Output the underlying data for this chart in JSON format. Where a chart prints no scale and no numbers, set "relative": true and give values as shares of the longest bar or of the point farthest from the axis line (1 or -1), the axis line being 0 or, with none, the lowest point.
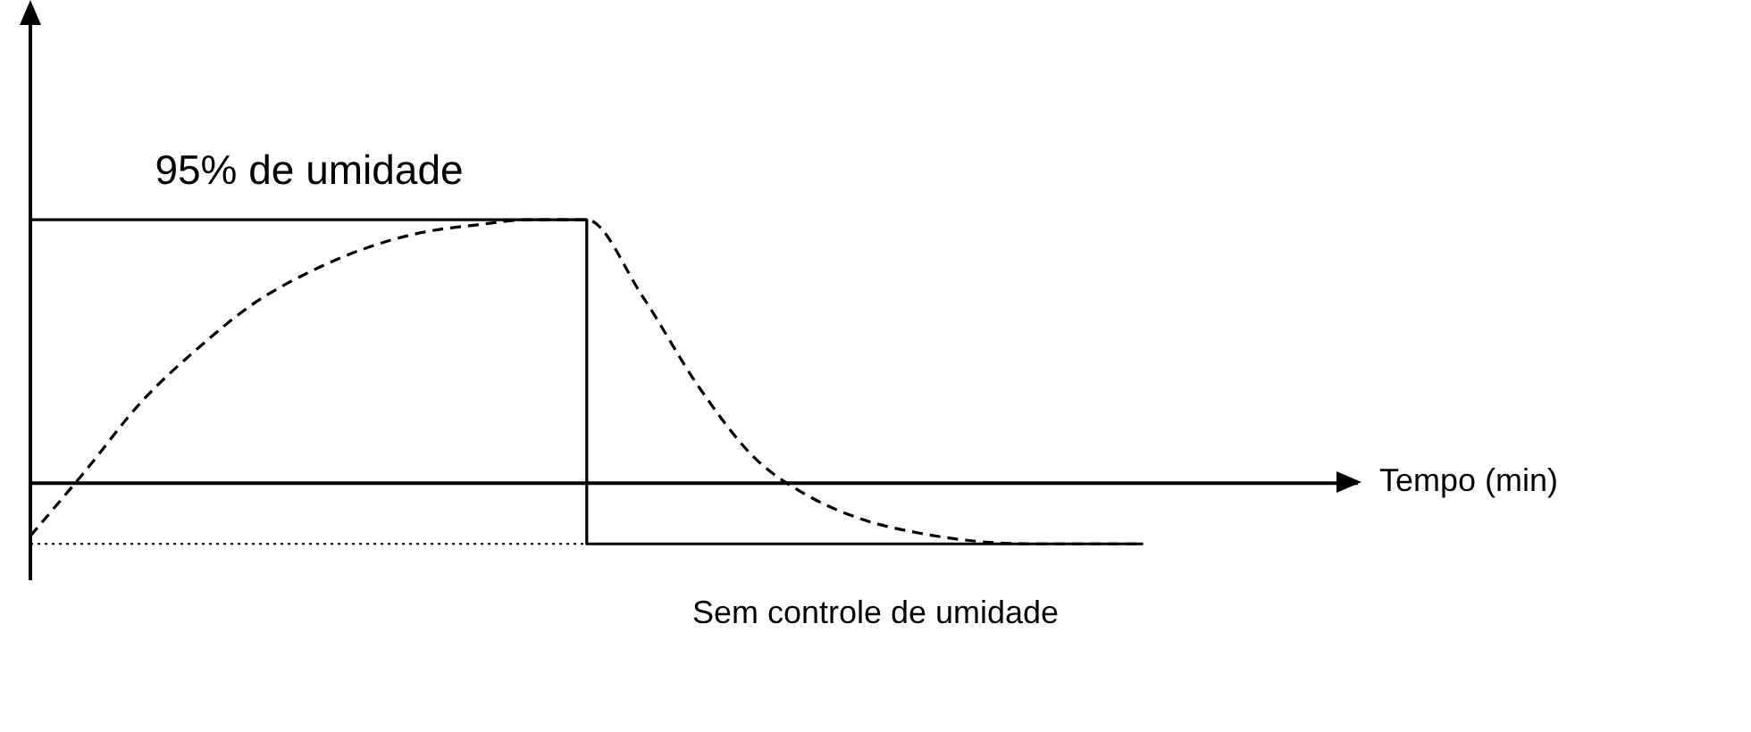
{
  "chart_data": {
    "type": "line",
    "relative": true,
    "annotations": [
      "95% de umidade",
      "Sem controle de umidade",
      "Tempo (min)"
    ],
    "categories": [
      null,
      null,
      null,
      null,
      null,
      null,
      null,
      null,
      null,
      null,
      null,
      null,
      null,
      null,
      null,
      null,
      null,
      null,
      null,
      null,
      null
    ],
    "marker": "none",
    "series": [
      {
        "type": "step",
        "color": "#000000",
        "line_style": "solid",
        "values": [
          1,
          1,
          1,
          1,
          1,
          1,
          1,
          1,
          1,
          1,
          -0.23,
          -0.23,
          -0.23,
          -0.23,
          -0.23,
          -0.23,
          -0.23,
          -0.23,
          -0.23,
          -0.23,
          -0.23
        ]
      },
      {
        "type": "line",
        "color": "#000000",
        "line_style": "dashed",
        "values": [
          -0.2,
          0.05,
          0.31,
          0.51,
          0.68,
          0.8,
          0.89,
          0.95,
          0.98,
          1,
          1,
          0.71,
          0.37,
          0.1,
          -0.05,
          -0.14,
          -0.19,
          -0.22,
          -0.23,
          -0.23,
          -0.23
        ]
      },
      {
        "type": "line",
        "color": "#000000",
        "line_style": "dotted",
        "values": [
          -0.23,
          -0.23,
          -0.23,
          -0.23,
          -0.23,
          -0.23,
          -0.23,
          -0.23,
          -0.23,
          -0.23,
          -0.23,
          null,
          null,
          null,
          null,
          null,
          null,
          null,
          null,
          null,
          null
        ]
      }
    ]
  }
}
